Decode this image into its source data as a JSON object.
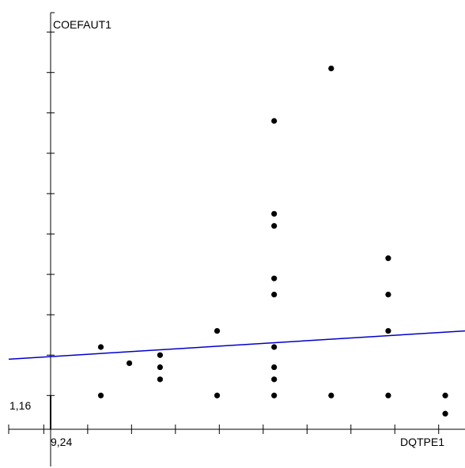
{
  "chart_data": {
    "type": "scatter",
    "xlabel": "DQTPE1",
    "ylabel": "COEFAUT1",
    "x_origin_label": "9,24",
    "y_origin_label": "1,16",
    "xlim": [
      0.2,
      10.6
    ],
    "ylim": [
      -0.6,
      10.6
    ],
    "x_ticks": [
      1,
      2,
      3,
      4,
      5,
      6,
      7,
      8,
      9,
      10
    ],
    "y_ticks": [
      1,
      2,
      3,
      4,
      5,
      6,
      7,
      8,
      9,
      10
    ],
    "series": [
      {
        "points": [
          {
            "x": 2.3,
            "y": 1.0
          },
          {
            "x": 2.3,
            "y": 2.2
          },
          {
            "x": 2.95,
            "y": 1.8
          },
          {
            "x": 3.65,
            "y": 1.4
          },
          {
            "x": 3.65,
            "y": 1.7
          },
          {
            "x": 3.65,
            "y": 2.0
          },
          {
            "x": 4.95,
            "y": 1.0
          },
          {
            "x": 4.95,
            "y": 2.6
          },
          {
            "x": 6.25,
            "y": 1.0
          },
          {
            "x": 6.25,
            "y": 1.4
          },
          {
            "x": 6.25,
            "y": 1.7
          },
          {
            "x": 6.25,
            "y": 2.2
          },
          {
            "x": 6.25,
            "y": 3.5
          },
          {
            "x": 6.25,
            "y": 3.9
          },
          {
            "x": 6.25,
            "y": 5.2
          },
          {
            "x": 6.25,
            "y": 5.5
          },
          {
            "x": 6.25,
            "y": 7.8
          },
          {
            "x": 7.55,
            "y": 1.0
          },
          {
            "x": 7.55,
            "y": 9.1
          },
          {
            "x": 8.85,
            "y": 1.0
          },
          {
            "x": 8.85,
            "y": 2.6
          },
          {
            "x": 8.85,
            "y": 3.5
          },
          {
            "x": 8.85,
            "y": 4.4
          },
          {
            "x": 10.15,
            "y": 0.55
          },
          {
            "x": 10.15,
            "y": 1.0
          }
        ]
      }
    ],
    "regression_line": {
      "x": [
        0.2,
        10.6
      ],
      "y": [
        1.9,
        2.6
      ]
    },
    "colors": {
      "points": "#000000",
      "axes": "#000000",
      "regression_line": "#0000cc"
    }
  }
}
